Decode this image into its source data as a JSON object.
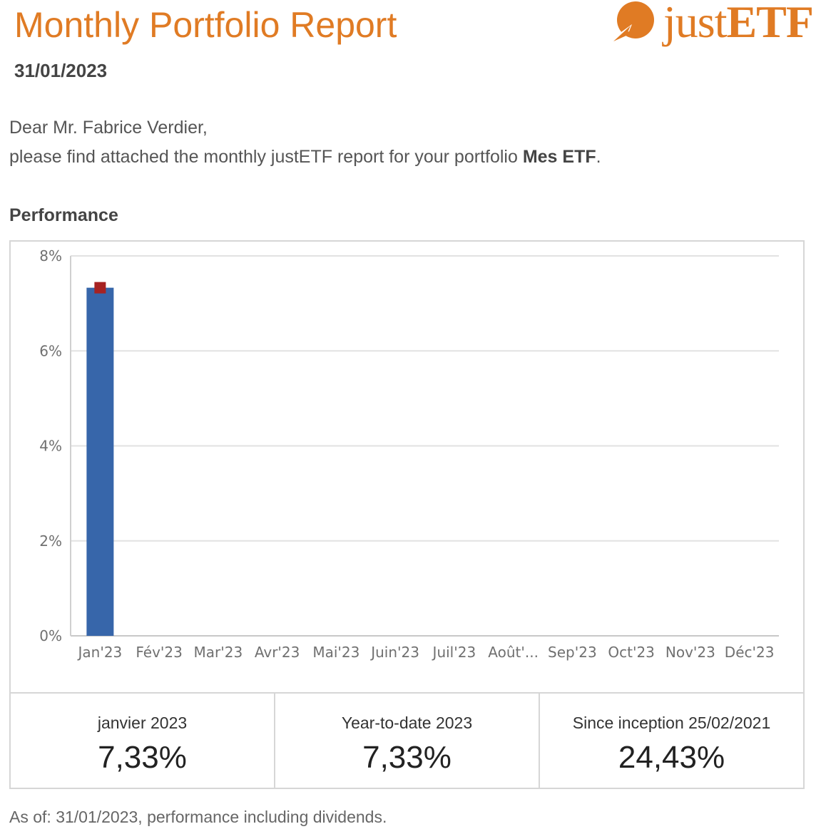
{
  "header": {
    "title": "Monthly Portfolio Report",
    "date": "31/01/2023",
    "logo": {
      "text_light": "just",
      "text_bold": "ETF",
      "brand_color": "#e07b24",
      "icon": "justetf-logo-icon"
    }
  },
  "greeting": "Dear Mr. Fabrice Verdier,",
  "intro": {
    "prefix": "please find attached the monthly justETF report for your portfolio ",
    "portfolio_name": "Mes ETF",
    "suffix": "."
  },
  "section_title": "Performance",
  "chart_data": {
    "type": "bar",
    "categories": [
      "Jan'23",
      "Fév'23",
      "Mar'23",
      "Avr'23",
      "Mai'23",
      "Juin'23",
      "Juil'23",
      "Août'...",
      "Sep'23",
      "Oct'23",
      "Nov'23",
      "Déc'23"
    ],
    "series": [
      {
        "values": [
          7.33,
          null,
          null,
          null,
          null,
          null,
          null,
          null,
          null,
          null,
          null,
          null
        ],
        "color": "#3766aa"
      }
    ],
    "markers": [
      7.33,
      null,
      null,
      null,
      null,
      null,
      null,
      null,
      null,
      null,
      null,
      null
    ],
    "marker_color": "#a62222",
    "ylim": [
      0,
      8
    ],
    "yticks": [
      0,
      2,
      4,
      6,
      8
    ],
    "ytick_labels": [
      "0%",
      "2%",
      "4%",
      "6%",
      "8%"
    ],
    "grid": true,
    "xlabel": "",
    "ylabel": ""
  },
  "stats": [
    {
      "label": "janvier 2023",
      "value": "7,33%"
    },
    {
      "label": "Year-to-date 2023",
      "value": "7,33%"
    },
    {
      "label": "Since inception 25/02/2021",
      "value": "24,43%"
    }
  ],
  "footnote": "As of: 31/01/2023, performance including dividends."
}
